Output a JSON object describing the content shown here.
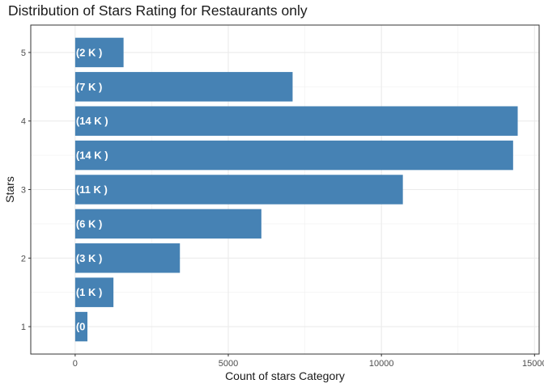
{
  "chart_data": {
    "type": "bar",
    "orientation": "horizontal",
    "title": "Distribution of Stars Rating for Restaurants only",
    "xlabel": "Count of stars Category",
    "ylabel": "Stars",
    "xlim": [
      -1450,
      15150
    ],
    "ylim": [
      0.6,
      5.4
    ],
    "x_ticks": [
      0,
      5000,
      10000,
      15000
    ],
    "x_tick_labels": [
      "0",
      "5000",
      "10000",
      "15000"
    ],
    "y_ticks": [
      1,
      2,
      3,
      4,
      5
    ],
    "y_tick_labels": [
      "1",
      "2",
      "3",
      "4",
      "5"
    ],
    "grid": true,
    "bar_color": "#4682b4",
    "bars": [
      {
        "stars": 1.0,
        "count": 400,
        "label": "(0"
      },
      {
        "stars": 1.5,
        "count": 1250,
        "label": "(1 K )"
      },
      {
        "stars": 2.0,
        "count": 3420,
        "label": "(3 K )"
      },
      {
        "stars": 2.5,
        "count": 6080,
        "label": "(6 K )"
      },
      {
        "stars": 3.0,
        "count": 10700,
        "label": "(11 K )"
      },
      {
        "stars": 3.5,
        "count": 14300,
        "label": "(14 K )"
      },
      {
        "stars": 4.0,
        "count": 14450,
        "label": "(14 K )"
      },
      {
        "stars": 4.5,
        "count": 7100,
        "label": "(7 K )"
      },
      {
        "stars": 5.0,
        "count": 1580,
        "label": "(2 K )"
      }
    ]
  }
}
